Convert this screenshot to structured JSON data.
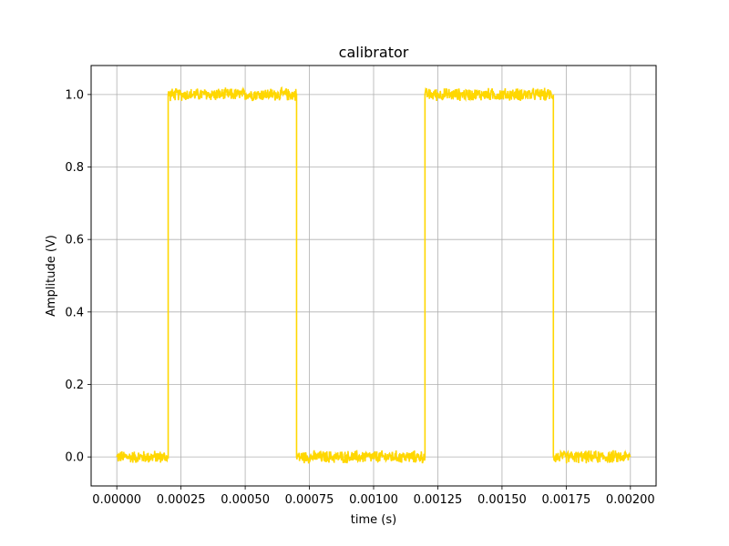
{
  "chart_data": {
    "type": "line",
    "title": "calibrator",
    "xlabel": "time (s)",
    "ylabel": "Amplitude (V)",
    "xlim": [
      -0.0001,
      0.0021
    ],
    "ylim": [
      -0.08,
      1.08
    ],
    "grid": true,
    "x_ticks": [
      0.0,
      0.00025,
      0.0005,
      0.00075,
      0.001,
      0.00125,
      0.0015,
      0.00175,
      0.002
    ],
    "x_tick_labels": [
      "0.00000",
      "0.00025",
      "0.00050",
      "0.00075",
      "0.00100",
      "0.00125",
      "0.00150",
      "0.00175",
      "0.00200"
    ],
    "y_ticks": [
      0.0,
      0.2,
      0.4,
      0.6,
      0.8,
      1.0
    ],
    "y_tick_labels": [
      "0.0",
      "0.2",
      "0.4",
      "0.6",
      "0.8",
      "1.0"
    ],
    "colors": {
      "series": "#FFD700",
      "grid": "#b0b0b0",
      "axis": "#000000"
    },
    "series": [
      {
        "x": [
          0.0,
          0.0002,
          0.0002,
          0.0007,
          0.0007,
          0.0012,
          0.0012,
          0.0017,
          0.0017,
          0.002
        ],
        "y": [
          0.0,
          0.0,
          1.0,
          1.0,
          0.0,
          0.0,
          1.0,
          1.0,
          0.0,
          0.0
        ],
        "noise_amplitude": 0.02
      }
    ]
  }
}
